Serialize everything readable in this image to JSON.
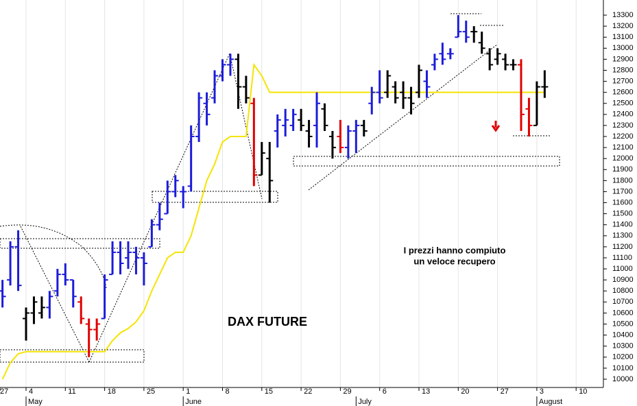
{
  "chart_data": {
    "type": "ohlc",
    "title": "DAX FUTURE",
    "annotation": [
      "I prezzi hanno compiuto",
      "un veloce recupero"
    ],
    "categories": [
      "27",
      null,
      null,
      null,
      null,
      "4",
      null,
      null,
      null,
      null,
      "11",
      null,
      null,
      null,
      null,
      "18",
      null,
      null,
      null,
      null,
      "25",
      null,
      null,
      null,
      null,
      "1",
      null,
      null,
      null,
      null,
      "8",
      null,
      null,
      null,
      null,
      "15",
      null,
      null,
      null,
      null,
      "22",
      null,
      null,
      null,
      null,
      "29",
      null,
      null,
      null,
      null,
      "6",
      null,
      null,
      null,
      null,
      "13",
      null,
      null,
      null,
      null,
      "20",
      null,
      null,
      null,
      null,
      "27",
      null,
      null,
      null,
      null,
      "3",
      null,
      null,
      null,
      null,
      "10",
      null,
      null,
      null
    ],
    "months": [
      null,
      null,
      null,
      null,
      null,
      "May",
      null,
      null,
      null,
      null,
      null,
      null,
      null,
      null,
      null,
      null,
      null,
      null,
      null,
      null,
      null,
      null,
      null,
      null,
      null,
      "June",
      null,
      null,
      null,
      null,
      null,
      null,
      null,
      null,
      null,
      null,
      null,
      null,
      null,
      null,
      null,
      null,
      null,
      null,
      null,
      null,
      null,
      "July",
      null,
      null,
      null,
      null,
      null,
      null,
      null,
      null,
      null,
      null,
      null,
      null,
      null,
      null,
      null,
      null,
      null,
      null,
      null,
      null,
      null,
      null,
      "August",
      null,
      null,
      null,
      null,
      null,
      null,
      null,
      null
    ],
    "open": [
      null,
      null,
      10800,
      10900,
      11200,
      10550,
      10600,
      10600,
      10650,
      10800,
      10950,
      10900,
      10700,
      10500,
      10450,
      10550,
      10950,
      11150,
      11100,
      11150,
      11100,
      11200,
      11400,
      11500,
      11700,
      11700,
      11750,
      12200,
      12500,
      12550,
      12750,
      12850,
      12900,
      12650,
      12500,
      11850,
      12000,
      12250,
      12300,
      12300,
      12350,
      12250,
      12300,
      12450,
      12200,
      12200,
      12100,
      12250,
      12300,
      12500,
      12600,
      12600,
      12650,
      12600,
      12550,
      12600,
      12700,
      12850,
      12950,
      12950,
      13100,
      13150,
      13150,
      13050,
      12950,
      12900,
      12900,
      12850,
      12850,
      12450,
      12300,
      12650,
      null,
      null,
      null,
      null,
      null,
      null,
      null
    ],
    "high": [
      null,
      null,
      10900,
      11250,
      11350,
      10650,
      10750,
      10750,
      10800,
      11000,
      11050,
      10900,
      10750,
      10550,
      10550,
      10950,
      11250,
      11250,
      11250,
      11200,
      11150,
      11450,
      11600,
      11800,
      11850,
      11750,
      12300,
      12600,
      12600,
      12800,
      12900,
      12950,
      12950,
      12750,
      12550,
      12150,
      12150,
      12400,
      12450,
      12450,
      12450,
      12350,
      12600,
      12500,
      12250,
      12350,
      12300,
      12350,
      12350,
      12650,
      12800,
      12800,
      12700,
      12700,
      12650,
      12850,
      12800,
      12950,
      13050,
      13000,
      13300,
      13250,
      13200,
      13150,
      13000,
      13000,
      12950,
      12900,
      12900,
      12550,
      12700,
      12800,
      null,
      null,
      null,
      null,
      null,
      null,
      null
    ],
    "low": [
      null,
      null,
      10650,
      10850,
      10800,
      10350,
      10500,
      10550,
      10550,
      10750,
      10850,
      10650,
      10500,
      10200,
      10350,
      10550,
      10950,
      10950,
      11000,
      10950,
      10850,
      11200,
      11350,
      11500,
      11650,
      11550,
      11700,
      12150,
      12300,
      12500,
      12700,
      12750,
      12450,
      12500,
      11750,
      11850,
      11600,
      12100,
      12200,
      12250,
      12250,
      12100,
      12100,
      12250,
      12000,
      12050,
      12000,
      12050,
      12200,
      12400,
      12500,
      12550,
      12500,
      12450,
      12400,
      12550,
      12550,
      12800,
      12850,
      12900,
      13100,
      13050,
      13050,
      12950,
      12800,
      12850,
      12800,
      12800,
      12250,
      12200,
      12300,
      12550,
      null,
      null,
      null,
      null,
      null,
      null,
      null
    ],
    "close": [
      null,
      null,
      10750,
      11200,
      10850,
      10600,
      10700,
      10650,
      10750,
      10950,
      10900,
      10750,
      10550,
      10450,
      10500,
      10900,
      11150,
      11050,
      11150,
      11100,
      11050,
      11400,
      11450,
      11700,
      11800,
      11700,
      12200,
      12550,
      12400,
      12750,
      12850,
      12900,
      12650,
      12550,
      11850,
      12050,
      11800,
      12350,
      12350,
      12400,
      12300,
      12200,
      12500,
      12300,
      12100,
      12100,
      12250,
      12300,
      12250,
      12600,
      12550,
      12750,
      12550,
      12550,
      12500,
      12800,
      12650,
      12900,
      12900,
      12950,
      13150,
      13100,
      13150,
      13000,
      12850,
      12950,
      12850,
      12850,
      12400,
      12300,
      12650,
      12650,
      null,
      null,
      null,
      null,
      null,
      null,
      null
    ],
    "bar_colors": [
      null,
      null,
      "#1c1cd8",
      "#1c1cd8",
      "#1c1cd8",
      "#000000",
      "#000000",
      "#000000",
      "#1c1cd8",
      "#1c1cd8",
      "#1c1cd8",
      "#1c1cd8",
      "#e00000",
      "#e00000",
      "#e00000",
      "#1c1cd8",
      "#1c1cd8",
      "#1c1cd8",
      "#1c1cd8",
      "#1c1cd8",
      "#1c1cd8",
      "#1c1cd8",
      "#1c1cd8",
      "#1c1cd8",
      "#1c1cd8",
      "#1c1cd8",
      "#1c1cd8",
      "#1c1cd8",
      "#1c1cd8",
      "#1c1cd8",
      "#1c1cd8",
      "#1c1cd8",
      "#000000",
      "#000000",
      "#e00000",
      "#000000",
      "#000000",
      "#1c1cd8",
      "#1c1cd8",
      "#1c1cd8",
      "#000000",
      "#000000",
      "#1c1cd8",
      "#000000",
      "#000000",
      "#e00000",
      "#1c1cd8",
      "#1c1cd8",
      "#000000",
      "#1c1cd8",
      "#1c1cd8",
      "#000000",
      "#000000",
      "#000000",
      "#000000",
      "#000000",
      "#1c1cd8",
      "#1c1cd8",
      "#1c1cd8",
      "#1c1cd8",
      "#1c1cd8",
      "#1c1cd8",
      "#000000",
      "#000000",
      "#000000",
      "#000000",
      "#000000",
      "#000000",
      "#e00000",
      "#e00000",
      "#000000",
      "#000000",
      null,
      null,
      null,
      null,
      null,
      null,
      null
    ],
    "line": {
      "color": "#f5e400",
      "values": [
        null,
        null,
        10000,
        10150,
        10230,
        10250,
        10250,
        10250,
        10250,
        10250,
        10250,
        10250,
        10250,
        10250,
        10250,
        10250,
        10350,
        10420,
        10460,
        10520,
        10620,
        10800,
        10950,
        11100,
        11150,
        11150,
        11300,
        11550,
        11800,
        11950,
        12150,
        12200,
        12200,
        12200,
        12850,
        12750,
        12600,
        12600,
        12600,
        12600,
        12600,
        12600,
        12600,
        12600,
        12600,
        12600,
        12600,
        12600,
        12600,
        12600,
        12600,
        12600,
        12600,
        12600,
        12600,
        12600,
        12600,
        12600,
        12600,
        12600,
        12600,
        12600,
        12600,
        12600,
        12600,
        12600,
        12600,
        12600,
        12600,
        12600,
        12600,
        12600,
        null,
        null,
        null,
        null,
        null,
        null,
        null
      ]
    },
    "ylim": [
      9925,
      13437
    ],
    "yticks": [
      10000,
      10100,
      10200,
      10300,
      10400,
      10500,
      10600,
      10700,
      10800,
      10900,
      11000,
      11100,
      11200,
      11300,
      11400,
      11500,
      11600,
      11700,
      11800,
      11900,
      12000,
      12100,
      12200,
      12300,
      12400,
      12500,
      12600,
      12700,
      12800,
      12900,
      13000,
      13100,
      13200,
      13300
    ],
    "grid": true
  }
}
